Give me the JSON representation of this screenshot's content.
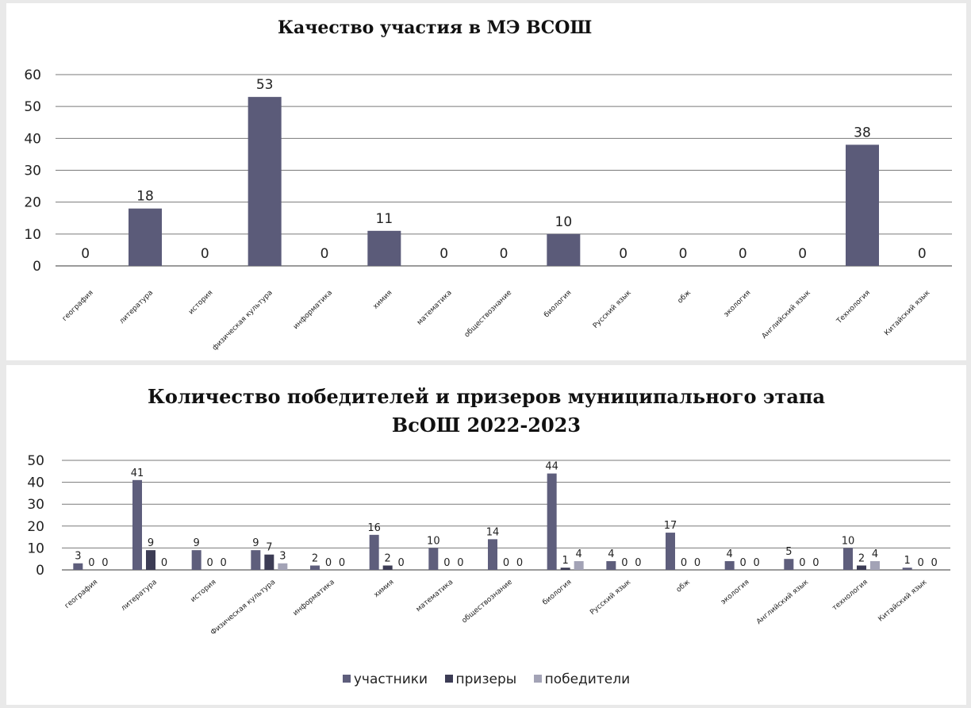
{
  "charts": [
    {
      "title": "Качество участия в МЭ ВСОШ"
    },
    {
      "title_lines": [
        "Количество победителей и призеров муниципального этапа",
        "ВсОШ 2022-2023"
      ],
      "legend": [
        "участники",
        "призеры",
        "победители"
      ]
    }
  ],
  "colors": {
    "bar1": "#5b5b79",
    "participants": "#5e5e7c",
    "prize": "#3c3c55",
    "winners": "#a3a3b6",
    "grid": "#7a7a7a",
    "text": "#222222"
  },
  "chart_data": [
    {
      "type": "bar",
      "title": "Качество участия в МЭ ВСОШ",
      "categories": [
        "география",
        "литература",
        "история",
        "физическая культура",
        "информатика",
        "химия",
        "математика",
        "обществознание",
        "биология",
        "Русский язык",
        "обж",
        "экология",
        "Английский язык",
        "Технология",
        "Китайский язык"
      ],
      "values": [
        0,
        18,
        0,
        53,
        0,
        11,
        0,
        0,
        10,
        0,
        0,
        0,
        0,
        38,
        0
      ],
      "ylim": [
        0,
        60
      ],
      "yticks": [
        0,
        10,
        20,
        30,
        40,
        50,
        60
      ],
      "grid": true
    },
    {
      "type": "bar",
      "title": "Количество победителей и призеров муниципального этапа ВсОШ 2022-2023",
      "categories": [
        "география",
        "литература",
        "история",
        "Физическая культура",
        "информатика",
        "химия",
        "математика",
        "обществознание",
        "биология",
        "Русский язык",
        "обж",
        "экология",
        "Английский язык",
        "технология",
        "Китайский язык"
      ],
      "series": [
        {
          "name": "участники",
          "values": [
            3,
            41,
            9,
            9,
            2,
            16,
            10,
            14,
            44,
            4,
            17,
            4,
            5,
            10,
            1
          ]
        },
        {
          "name": "призеры",
          "values": [
            0,
            9,
            0,
            7,
            0,
            2,
            0,
            0,
            1,
            0,
            0,
            0,
            0,
            2,
            0
          ]
        },
        {
          "name": "победители",
          "values": [
            0,
            0,
            0,
            3,
            0,
            0,
            0,
            0,
            4,
            0,
            0,
            0,
            0,
            4,
            0
          ]
        }
      ],
      "ylim": [
        0,
        50
      ],
      "yticks": [
        0,
        10,
        20,
        30,
        40,
        50
      ],
      "grid": true,
      "legend_position": "bottom"
    }
  ]
}
